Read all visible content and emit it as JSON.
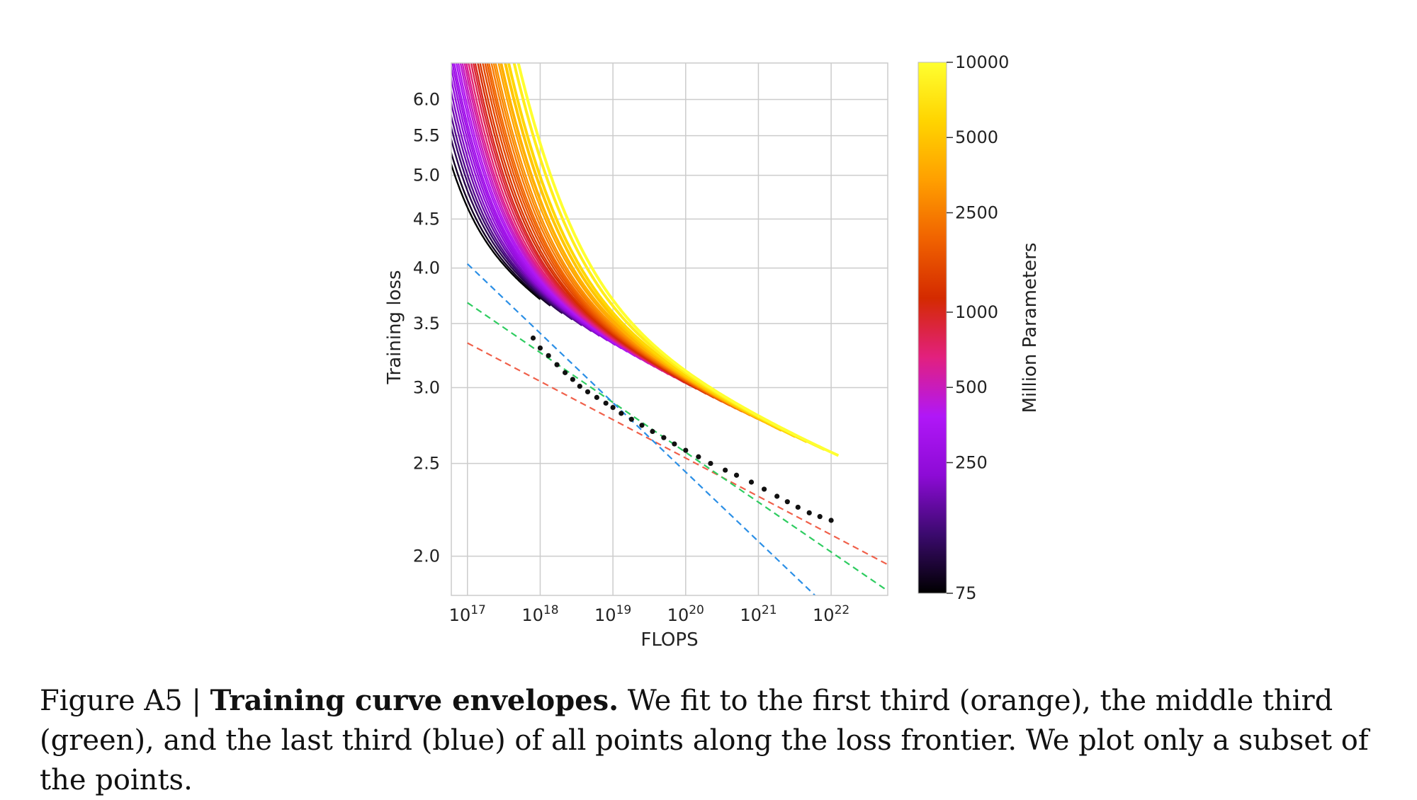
{
  "chart_data": {
    "type": "line",
    "xlabel": "FLOPS",
    "ylabel": "Training loss",
    "x_scale": "log",
    "y_scale": "log",
    "xlim": [
      6e+16,
      6e+22
    ],
    "ylim": [
      1.82,
      6.55
    ],
    "x_ticks": [
      {
        "value": 1e+17,
        "base": "10",
        "exp": "17"
      },
      {
        "value": 1e+18,
        "base": "10",
        "exp": "18"
      },
      {
        "value": 1e+19,
        "base": "10",
        "exp": "19"
      },
      {
        "value": 1e+20,
        "base": "10",
        "exp": "20"
      },
      {
        "value": 1e+21,
        "base": "10",
        "exp": "21"
      },
      {
        "value": 1e+22,
        "base": "10",
        "exp": "22"
      }
    ],
    "y_ticks": [
      {
        "value": 2.0,
        "label": "2.0"
      },
      {
        "value": 2.5,
        "label": "2.5"
      },
      {
        "value": 3.0,
        "label": "3.0"
      },
      {
        "value": 3.5,
        "label": "3.5"
      },
      {
        "value": 4.0,
        "label": "4.0"
      },
      {
        "value": 4.5,
        "label": "4.5"
      },
      {
        "value": 5.0,
        "label": "5.0"
      },
      {
        "value": 5.5,
        "label": "5.5"
      },
      {
        "value": 6.0,
        "label": "6.0"
      }
    ],
    "grid": true,
    "colorbar": {
      "label": "Million Parameters",
      "scale": "log",
      "range": [
        75,
        10000
      ],
      "ticks": [
        {
          "value": 10000,
          "label": "10000"
        },
        {
          "value": 5000,
          "label": "5000"
        },
        {
          "value": 2500,
          "label": "2500"
        },
        {
          "value": 1000,
          "label": "1000"
        },
        {
          "value": 500,
          "label": "500"
        },
        {
          "value": 250,
          "label": "250"
        },
        {
          "value": 75,
          "label": "75"
        }
      ],
      "colormap": [
        "#000000",
        "#3b0a6e",
        "#8d0bd6",
        "#b017f7",
        "#e2207e",
        "#d42a00",
        "#f06200",
        "#ff9f00",
        "#ffd400",
        "#ffff30"
      ]
    },
    "model_params_millions": [
      75,
      90,
      110,
      130,
      150,
      175,
      200,
      230,
      260,
      290,
      320,
      360,
      400,
      450,
      500,
      560,
      620,
      700,
      800,
      900,
      1000,
      1150,
      1300,
      1500,
      1700,
      1900,
      2100,
      2400,
      2700,
      3000,
      3500,
      4000,
      5000,
      6000,
      8000,
      10000
    ],
    "loss_frontier_points": [
      {
        "flops": 8e+17,
        "loss": 3.38
      },
      {
        "flops": 1e+18,
        "loss": 3.3
      },
      {
        "flops": 1.3e+18,
        "loss": 3.24
      },
      {
        "flops": 1.7e+18,
        "loss": 3.17
      },
      {
        "flops": 2.2e+18,
        "loss": 3.11
      },
      {
        "flops": 2.8e+18,
        "loss": 3.06
      },
      {
        "flops": 3.5e+18,
        "loss": 3.01
      },
      {
        "flops": 4.5e+18,
        "loss": 2.97
      },
      {
        "flops": 6e+18,
        "loss": 2.93
      },
      {
        "flops": 8e+18,
        "loss": 2.89
      },
      {
        "flops": 1e+19,
        "loss": 2.86
      },
      {
        "flops": 1.3e+19,
        "loss": 2.82
      },
      {
        "flops": 1.8e+19,
        "loss": 2.78
      },
      {
        "flops": 2.5e+19,
        "loss": 2.74
      },
      {
        "flops": 3.5e+19,
        "loss": 2.7
      },
      {
        "flops": 5e+19,
        "loss": 2.66
      },
      {
        "flops": 7e+19,
        "loss": 2.62
      },
      {
        "flops": 1e+20,
        "loss": 2.58
      },
      {
        "flops": 1.5e+20,
        "loss": 2.54
      },
      {
        "flops": 2.2e+20,
        "loss": 2.5
      },
      {
        "flops": 3.5e+20,
        "loss": 2.46
      },
      {
        "flops": 5e+20,
        "loss": 2.43
      },
      {
        "flops": 8e+20,
        "loss": 2.39
      },
      {
        "flops": 1.2e+21,
        "loss": 2.35
      },
      {
        "flops": 1.8e+21,
        "loss": 2.31
      },
      {
        "flops": 2.5e+21,
        "loss": 2.28
      },
      {
        "flops": 3.5e+21,
        "loss": 2.25
      },
      {
        "flops": 5e+21,
        "loss": 2.22
      },
      {
        "flops": 7e+21,
        "loss": 2.2
      },
      {
        "flops": 1e+22,
        "loss": 2.18
      }
    ],
    "fit_lines": [
      {
        "color": "#f0604a",
        "x": [
          1e+17,
          6e+22
        ],
        "y": [
          3.34,
          1.96
        ]
      },
      {
        "color": "#2ecc60",
        "x": [
          1e+17,
          6e+22
        ],
        "y": [
          3.68,
          1.84
        ]
      },
      {
        "color": "#2b8fe6",
        "x": [
          1e+17,
          6e+21
        ],
        "y": [
          4.04,
          1.82
        ]
      }
    ]
  },
  "caption": {
    "prefix": "Figure A5 | ",
    "title": "Training curve envelopes.",
    "text": " We fit to the first third (orange), the middle third (green), and the last third (blue) of all points along the loss frontier. We plot only a subset of the points."
  }
}
